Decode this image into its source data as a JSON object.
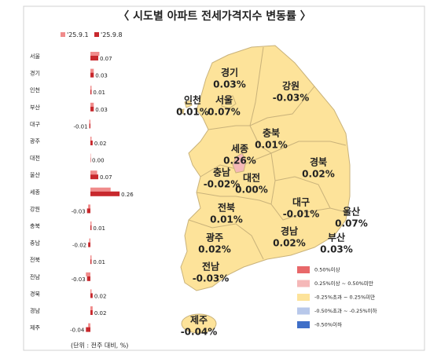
{
  "chart_data": {
    "type": "hbar",
    "title": "〈 시도별 아파트 전세가격지수 변동률 〉",
    "note": "(단위 : 전주 대비, %)",
    "categories": [
      "서울",
      "경기",
      "인천",
      "부산",
      "대구",
      "광주",
      "대전",
      "울산",
      "세종",
      "강원",
      "충북",
      "충남",
      "전북",
      "전남",
      "경북",
      "경남",
      "제주"
    ],
    "series": [
      {
        "name": "'25.9.1",
        "color": "#f08b8b",
        "values": [
          0.08,
          0.03,
          0.01,
          0.03,
          -0.01,
          0.01,
          0.0,
          0.06,
          0.18,
          -0.02,
          0.01,
          -0.01,
          0.01,
          -0.04,
          0.01,
          0.02,
          -0.02
        ]
      },
      {
        "name": "'25.9.8",
        "color": "#c8282d",
        "values": [
          0.07,
          0.03,
          0.01,
          0.03,
          -0.01,
          0.02,
          0.0,
          0.07,
          0.26,
          -0.03,
          0.01,
          -0.02,
          0.01,
          -0.03,
          0.02,
          0.02,
          -0.04
        ],
        "value_labels": [
          "0.07",
          "0.03",
          "0.01",
          "0.03",
          "-0.01",
          "0.02",
          "0.00",
          "0.07",
          "0.26",
          "-0.03",
          "0.01",
          "-0.02",
          "0.01",
          "-0.03",
          "0.02",
          "0.02",
          "-0.04"
        ]
      }
    ],
    "xlim": [
      -0.35,
      0.35
    ]
  },
  "map": {
    "regions": [
      {
        "name": "경기",
        "label": "0.03%"
      },
      {
        "name": "강원",
        "label": "-0.03%"
      },
      {
        "name": "인천",
        "label": "0.01%"
      },
      {
        "name": "서울",
        "label": "0.07%"
      },
      {
        "name": "충북",
        "label": "0.01%"
      },
      {
        "name": "세종",
        "label": "0.26%"
      },
      {
        "name": "경북",
        "label": "0.02%"
      },
      {
        "name": "충남",
        "label": "-0.02%"
      },
      {
        "name": "대전",
        "label": "0.00%"
      },
      {
        "name": "대구",
        "label": "-0.01%"
      },
      {
        "name": "울산",
        "label": "0.07%"
      },
      {
        "name": "전북",
        "label": "0.01%"
      },
      {
        "name": "경남",
        "label": "0.02%"
      },
      {
        "name": "부산",
        "label": "0.03%"
      },
      {
        "name": "광주",
        "label": "0.02%"
      },
      {
        "name": "전남",
        "label": "-0.03%"
      },
      {
        "name": "제주",
        "label": "-0.04%"
      }
    ],
    "legend": [
      {
        "label": "0.50%이상",
        "color": "#e8686a"
      },
      {
        "label": "0.25%이상 ~ 0.50%미만",
        "color": "#f5b8b8"
      },
      {
        "label": "-0.25%초과 ~ 0.25%미만",
        "color": "#fde39a"
      },
      {
        "label": "-0.50%초과 ~ -0.25%이하",
        "color": "#b8c8ea"
      },
      {
        "label": "-0.50%이하",
        "color": "#3f6fc8"
      }
    ]
  }
}
